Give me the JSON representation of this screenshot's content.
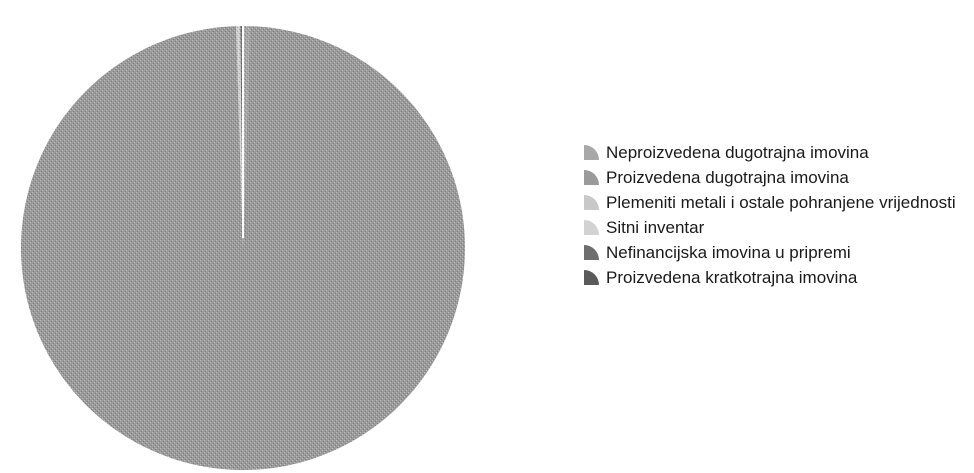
{
  "chart_data": {
    "type": "pie",
    "title": "",
    "slices": [
      {
        "label": "Neproizvedena dugotrajna imovina",
        "value": 0.5,
        "color": "#a8a8a8"
      },
      {
        "label": "Proizvedena dugotrajna imovina",
        "value": 99.0,
        "color": "#9a9a9a"
      },
      {
        "label": "Plemeniti metali i ostale pohranjene vrijednosti",
        "value": 0.1,
        "color": "#c8c8c8"
      },
      {
        "label": "Sitni inventar",
        "value": 0.2,
        "color": "#d2d2d2"
      },
      {
        "label": "Nefinancijska imovina u pripremi",
        "value": 0.1,
        "color": "#6e6e6e"
      },
      {
        "label": "Proizvedena kratkotrajna imovina",
        "value": 0.1,
        "color": "#5a5a5a"
      }
    ],
    "legend_position": "right"
  }
}
